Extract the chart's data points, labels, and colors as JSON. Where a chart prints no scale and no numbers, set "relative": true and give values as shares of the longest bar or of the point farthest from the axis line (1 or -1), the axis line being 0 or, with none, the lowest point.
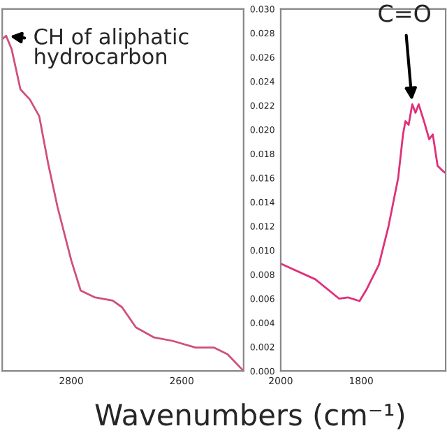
{
  "chart_data": [
    {
      "type": "line",
      "relative": true,
      "tick_labels": "x",
      "xlim": [
        2925,
        2488
      ],
      "xticks": [
        2800,
        2600
      ],
      "grid": false,
      "x": [
        2925,
        2918,
        2908,
        2892,
        2875,
        2858,
        2842,
        2825,
        2800,
        2783,
        2758,
        2725,
        2708,
        2683,
        2650,
        2617,
        2575,
        2542,
        2517,
        2488
      ],
      "series": [
        {
          "color": "#d0507a",
          "values": [
            0.99,
            1.0,
            0.96,
            0.84,
            0.81,
            0.76,
            0.62,
            0.49,
            0.33,
            0.24,
            0.22,
            0.21,
            0.19,
            0.13,
            0.1,
            0.09,
            0.07,
            0.07,
            0.05,
            0.0
          ]
        }
      ],
      "annotations": [
        {
          "text": "CH of aliphatic\nhydrocarbon",
          "x": 2918,
          "y": 1.0
        }
      ]
    },
    {
      "type": "line",
      "xlim": [
        2000,
        1590
      ],
      "xticks": [
        2000,
        1800
      ],
      "ylim": [
        0,
        0.03
      ],
      "grid": false,
      "yticks": [
        {
          "value": 0,
          "label": "0.000"
        },
        {
          "value": 0.002,
          "label": "0.002"
        },
        {
          "value": 0.004,
          "label": "0.004"
        },
        {
          "value": 0.006,
          "label": "0.006"
        },
        {
          "value": 0.008,
          "label": "0.008"
        },
        {
          "value": 0.01,
          "label": "0.010"
        },
        {
          "value": 0.012,
          "label": "0.012"
        },
        {
          "value": 0.014,
          "label": "0.014"
        },
        {
          "value": 0.016,
          "label": "0.016"
        },
        {
          "value": 0.018,
          "label": "0.018"
        },
        {
          "value": 0.02,
          "label": "0.020"
        },
        {
          "value": 0.022,
          "label": "0.022"
        },
        {
          "value": 0.024,
          "label": "0.024"
        },
        {
          "value": 0.026,
          "label": "0.026"
        },
        {
          "value": 0.028,
          "label": "0.028"
        },
        {
          "value": 0.03,
          "label": "0.030"
        }
      ],
      "x": [
        2000,
        1914,
        1855,
        1833,
        1804,
        1786,
        1756,
        1732,
        1708,
        1696,
        1690,
        1682,
        1673,
        1665,
        1657,
        1643,
        1631,
        1622,
        1610,
        1598,
        1590
      ],
      "series": [
        {
          "color": "#e0307a",
          "values": [
            0.0089,
            0.0076,
            0.006,
            0.0061,
            0.0058,
            0.0068,
            0.0088,
            0.012,
            0.016,
            0.0196,
            0.0207,
            0.0204,
            0.0221,
            0.0214,
            0.0221,
            0.0206,
            0.0192,
            0.0196,
            0.017,
            0.0166,
            0.0164
          ]
        }
      ],
      "annotations": [
        {
          "text": "C=O",
          "x": 1673,
          "y": 0.0221
        }
      ],
      "xlabel": "Wavenumbers (cm⁻¹)"
    }
  ]
}
